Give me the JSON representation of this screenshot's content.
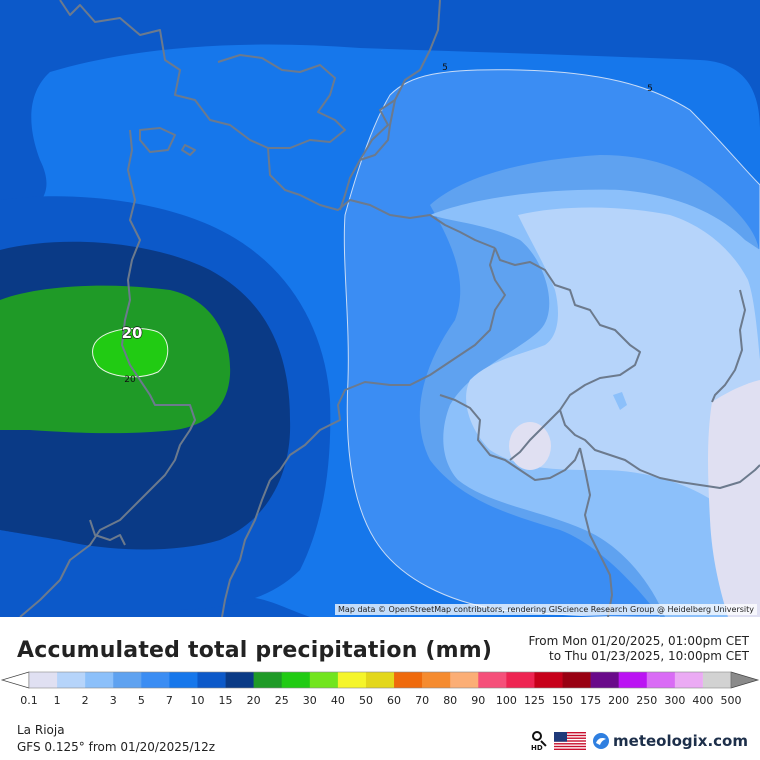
{
  "map": {
    "attribution": "Map data © OpenStreetMap contributors, rendering GIScience Research Group @ Heidelberg University",
    "contour_labels": [
      {
        "text": "5",
        "value": 5
      },
      {
        "text": "5",
        "value": 5
      },
      {
        "text": "20",
        "value": 20
      },
      {
        "text": "20",
        "value": 20
      }
    ],
    "colors": {
      "c01": "#e0e0f2",
      "c1": "#b6d4fa",
      "c2": "#8cc0fa",
      "c3": "#5fa2f0",
      "c5": "#3b8df3",
      "c7": "#1677eb",
      "c10": "#0c59c9",
      "c15": "#0a3a86",
      "c20": "#1f9a27",
      "c25": "#21cb13",
      "border": "#6c7a8d"
    }
  },
  "header": {
    "title": "Accumulated total precipitation (mm)",
    "period_from": "From Mon 01/20/2025, 01:00pm CET",
    "period_to": "to Thu 01/23/2025, 10:00pm CET"
  },
  "legend": {
    "items": [
      {
        "label": "0.1",
        "color": "#e0e0f2"
      },
      {
        "label": "1",
        "color": "#b6d4fa"
      },
      {
        "label": "2",
        "color": "#8cc0fa"
      },
      {
        "label": "3",
        "color": "#5fa2f0"
      },
      {
        "label": "5",
        "color": "#3b8df3"
      },
      {
        "label": "7",
        "color": "#1677eb"
      },
      {
        "label": "10",
        "color": "#0c59c9"
      },
      {
        "label": "15",
        "color": "#0a3a86"
      },
      {
        "label": "20",
        "color": "#1f9a27"
      },
      {
        "label": "25",
        "color": "#21cb13"
      },
      {
        "label": "30",
        "color": "#72e51e"
      },
      {
        "label": "40",
        "color": "#f5f52a"
      },
      {
        "label": "50",
        "color": "#e3d71b"
      },
      {
        "label": "60",
        "color": "#ef6a0c"
      },
      {
        "label": "70",
        "color": "#f58b2f"
      },
      {
        "label": "80",
        "color": "#fbae76"
      },
      {
        "label": "90",
        "color": "#f5507a"
      },
      {
        "label": "100",
        "color": "#ee2452"
      },
      {
        "label": "125",
        "color": "#c7001a"
      },
      {
        "label": "150",
        "color": "#980012"
      },
      {
        "label": "175",
        "color": "#6a0a8a"
      },
      {
        "label": "200",
        "color": "#bb13f3"
      },
      {
        "label": "250",
        "color": "#d96bf5"
      },
      {
        "label": "300",
        "color": "#ebaaf4"
      },
      {
        "label": "400",
        "color": "#f7e6fa"
      },
      {
        "label": "500",
        "color": "#d2d2d2"
      }
    ],
    "under_color": "#ffffff",
    "over_color": "#8a8a8a"
  },
  "footer": {
    "location": "La Rioja",
    "model": "GFS 0.125° from  01/20/2025/12z",
    "hd_label": "HD",
    "brand": "meteologix.com",
    "icons": [
      "hd-magnifier-icon",
      "us-flag-icon",
      "meteologix-logo-icon"
    ]
  }
}
